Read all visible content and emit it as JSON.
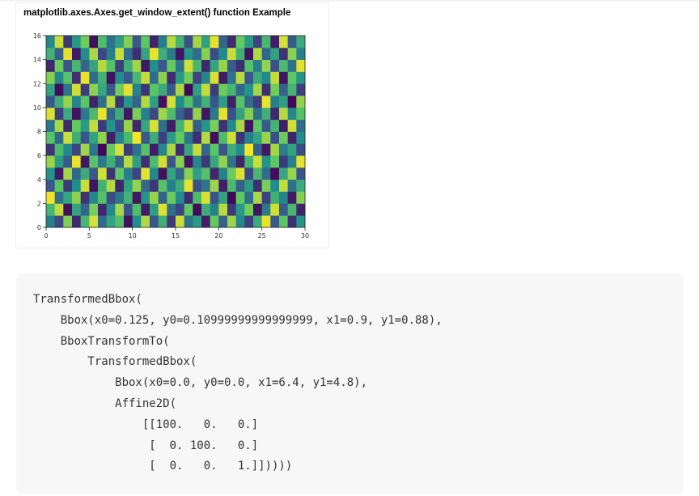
{
  "chart_data": {
    "type": "heatmap",
    "title": "matplotlib.axes.Axes.get_window_extent() function Example",
    "xlabel": "",
    "ylabel": "",
    "xlim": [
      0,
      30
    ],
    "ylim": [
      0,
      16
    ],
    "xticks": [
      0,
      5,
      10,
      15,
      20,
      25,
      30
    ],
    "yticks": [
      0,
      2,
      4,
      6,
      8,
      10,
      12,
      14,
      16
    ],
    "grid": false,
    "colormap": "viridis",
    "colormap_stops": [
      "#440154",
      "#3b528b",
      "#21918c",
      "#5ec962",
      "#fde725"
    ],
    "rows": 16,
    "cols": 30,
    "values": [
      [
        0.43,
        0.22,
        0.81,
        0.12,
        0.67,
        0.94,
        0.35,
        0.58,
        0.71,
        0.05,
        0.49,
        0.88,
        0.26,
        0.63,
        0.17,
        0.92,
        0.38,
        0.54,
        0.09,
        0.76,
        0.31,
        0.85,
        0.46,
        0.19,
        0.61,
        0.97,
        0.28,
        0.73,
        0.14,
        0.52
      ],
      [
        0.66,
        0.91,
        0.04,
        0.58,
        0.33,
        0.79,
        0.12,
        0.47,
        0.86,
        0.25,
        0.69,
        0.08,
        0.55,
        0.95,
        0.36,
        0.21,
        0.74,
        0.03,
        0.62,
        0.44,
        0.89,
        0.17,
        0.53,
        0.78,
        0.06,
        0.41,
        0.93,
        0.29,
        0.67,
        0.11
      ],
      [
        0.98,
        0.37,
        0.59,
        0.82,
        0.15,
        0.46,
        0.71,
        0.23,
        0.39,
        0.64,
        0.07,
        0.52,
        0.84,
        0.31,
        0.77,
        0.48,
        0.13,
        0.69,
        0.94,
        0.26,
        0.57,
        0.02,
        0.75,
        0.36,
        0.87,
        0.19,
        0.63,
        0.45,
        0.08,
        0.81
      ],
      [
        0.27,
        0.73,
        0.18,
        0.49,
        0.92,
        0.06,
        0.64,
        0.88,
        0.11,
        0.57,
        0.83,
        0.34,
        0.16,
        0.72,
        0.42,
        0.61,
        0.97,
        0.24,
        0.38,
        0.85,
        0.09,
        0.68,
        0.31,
        0.54,
        0.14,
        0.79,
        0.48,
        0.91,
        0.37,
        0.62
      ],
      [
        0.51,
        0.08,
        0.86,
        0.34,
        0.61,
        0.27,
        0.93,
        0.15,
        0.74,
        0.42,
        0.21,
        0.96,
        0.47,
        0.05,
        0.58,
        0.33,
        0.82,
        0.56,
        0.71,
        0.12,
        0.44,
        0.77,
        0.95,
        0.22,
        0.67,
        0.35,
        0.03,
        0.59,
        0.84,
        0.26
      ],
      [
        0.84,
        0.55,
        0.29,
        0.97,
        0.07,
        0.72,
        0.41,
        0.63,
        0.32,
        0.89,
        0.56,
        0.14,
        0.68,
        0.93,
        0.25,
        0.81,
        0.06,
        0.45,
        0.17,
        0.59,
        0.83,
        0.38,
        0.11,
        0.66,
        0.92,
        0.51,
        0.74,
        0.18,
        0.43,
        0.96
      ],
      [
        0.16,
        0.68,
        0.47,
        0.21,
        0.85,
        0.39,
        0.02,
        0.76,
        0.94,
        0.18,
        0.37,
        0.71,
        0.09,
        0.46,
        0.87,
        0.13,
        0.59,
        0.91,
        0.34,
        0.73,
        0.26,
        0.62,
        0.48,
        0.99,
        0.31,
        0.07,
        0.86,
        0.42,
        0.57,
        0.23
      ],
      [
        0.72,
        0.34,
        0.92,
        0.63,
        0.26,
        0.57,
        0.83,
        0.09,
        0.45,
        0.67,
        0.98,
        0.28,
        0.61,
        0.19,
        0.54,
        0.76,
        0.39,
        0.14,
        0.88,
        0.04,
        0.69,
        0.93,
        0.16,
        0.43,
        0.58,
        0.84,
        0.24,
        0.77,
        0.11,
        0.48
      ],
      [
        0.39,
        0.87,
        0.13,
        0.76,
        0.54,
        0.91,
        0.18,
        0.51,
        0.23,
        0.84,
        0.12,
        0.59,
        0.94,
        0.37,
        0.08,
        0.65,
        0.92,
        0.29,
        0.52,
        0.79,
        0.15,
        0.47,
        0.87,
        0.06,
        0.74,
        0.28,
        0.65,
        0.09,
        0.93,
        0.35
      ],
      [
        0.95,
        0.19,
        0.61,
        0.05,
        0.41,
        0.68,
        0.97,
        0.33,
        0.62,
        0.07,
        0.79,
        0.43,
        0.22,
        0.85,
        0.69,
        0.31,
        0.17,
        0.83,
        0.06,
        0.41,
        0.96,
        0.24,
        0.58,
        0.81,
        0.37,
        0.63,
        0.12,
        0.89,
        0.46,
        0.71
      ],
      [
        0.28,
        0.62,
        0.84,
        0.45,
        0.73,
        0.11,
        0.36,
        0.89,
        0.16,
        0.52,
        0.31,
        0.88,
        0.56,
        0.04,
        0.94,
        0.49,
        0.71,
        0.38,
        0.64,
        0.27,
        0.55,
        0.09,
        0.72,
        0.34,
        0.19,
        0.97,
        0.43,
        0.56,
        0.02,
        0.83
      ],
      [
        0.57,
        0.03,
        0.39,
        0.93,
        0.18,
        0.82,
        0.59,
        0.27,
        0.78,
        0.96,
        0.44,
        0.16,
        0.73,
        0.61,
        0.28,
        0.87,
        0.02,
        0.56,
        0.91,
        0.18,
        0.77,
        0.66,
        0.33,
        0.52,
        0.86,
        0.14,
        0.78,
        0.31,
        0.65,
        0.19
      ],
      [
        0.81,
        0.46,
        0.72,
        0.14,
        0.97,
        0.35,
        0.64,
        0.05,
        0.48,
        0.29,
        0.66,
        0.91,
        0.35,
        0.82,
        0.13,
        0.54,
        0.78,
        0.21,
        0.45,
        0.94,
        0.08,
        0.39,
        0.89,
        0.27,
        0.61,
        0.47,
        0.91,
        0.06,
        0.74,
        0.52
      ],
      [
        0.12,
        0.77,
        0.25,
        0.66,
        0.32,
        0.58,
        0.88,
        0.71,
        0.19,
        0.63,
        0.85,
        0.07,
        0.49,
        0.27,
        0.76,
        0.39,
        0.93,
        0.67,
        0.12,
        0.58,
        0.84,
        0.29,
        0.14,
        0.71,
        0.42,
        0.83,
        0.25,
        0.68,
        0.37,
        0.96
      ],
      [
        0.64,
        0.31,
        0.96,
        0.08,
        0.49,
        0.87,
        0.22,
        0.43,
        0.92,
        0.36,
        0.14,
        0.58,
        0.97,
        0.62,
        0.41,
        0.06,
        0.52,
        0.35,
        0.81,
        0.23,
        0.47,
        0.92,
        0.63,
        0.06,
        0.88,
        0.33,
        0.57,
        0.15,
        0.82,
        0.44
      ],
      [
        0.47,
        0.92,
        0.17,
        0.53,
        0.78,
        0.04,
        0.69,
        0.38,
        0.56,
        0.81,
        0.27,
        0.74,
        0.11,
        0.43,
        0.89,
        0.65,
        0.24,
        0.86,
        0.57,
        0.96,
        0.32,
        0.13,
        0.76,
        0.54,
        0.21,
        0.67,
        0.09,
        0.94,
        0.28,
        0.61
      ]
    ]
  },
  "output": {
    "lines": [
      "TransformedBbox(",
      "    Bbox(x0=0.125, y0=0.10999999999999999, x1=0.9, y1=0.88),",
      "    BboxTransformTo(",
      "        TransformedBbox(",
      "            Bbox(x0=0.0, y0=0.0, x1=6.4, y1=4.8),",
      "            Affine2D(",
      "                [[100.   0.   0.]",
      "                 [  0. 100.   0.]",
      "                 [  0.   0.   1.]]))))"
    ]
  }
}
